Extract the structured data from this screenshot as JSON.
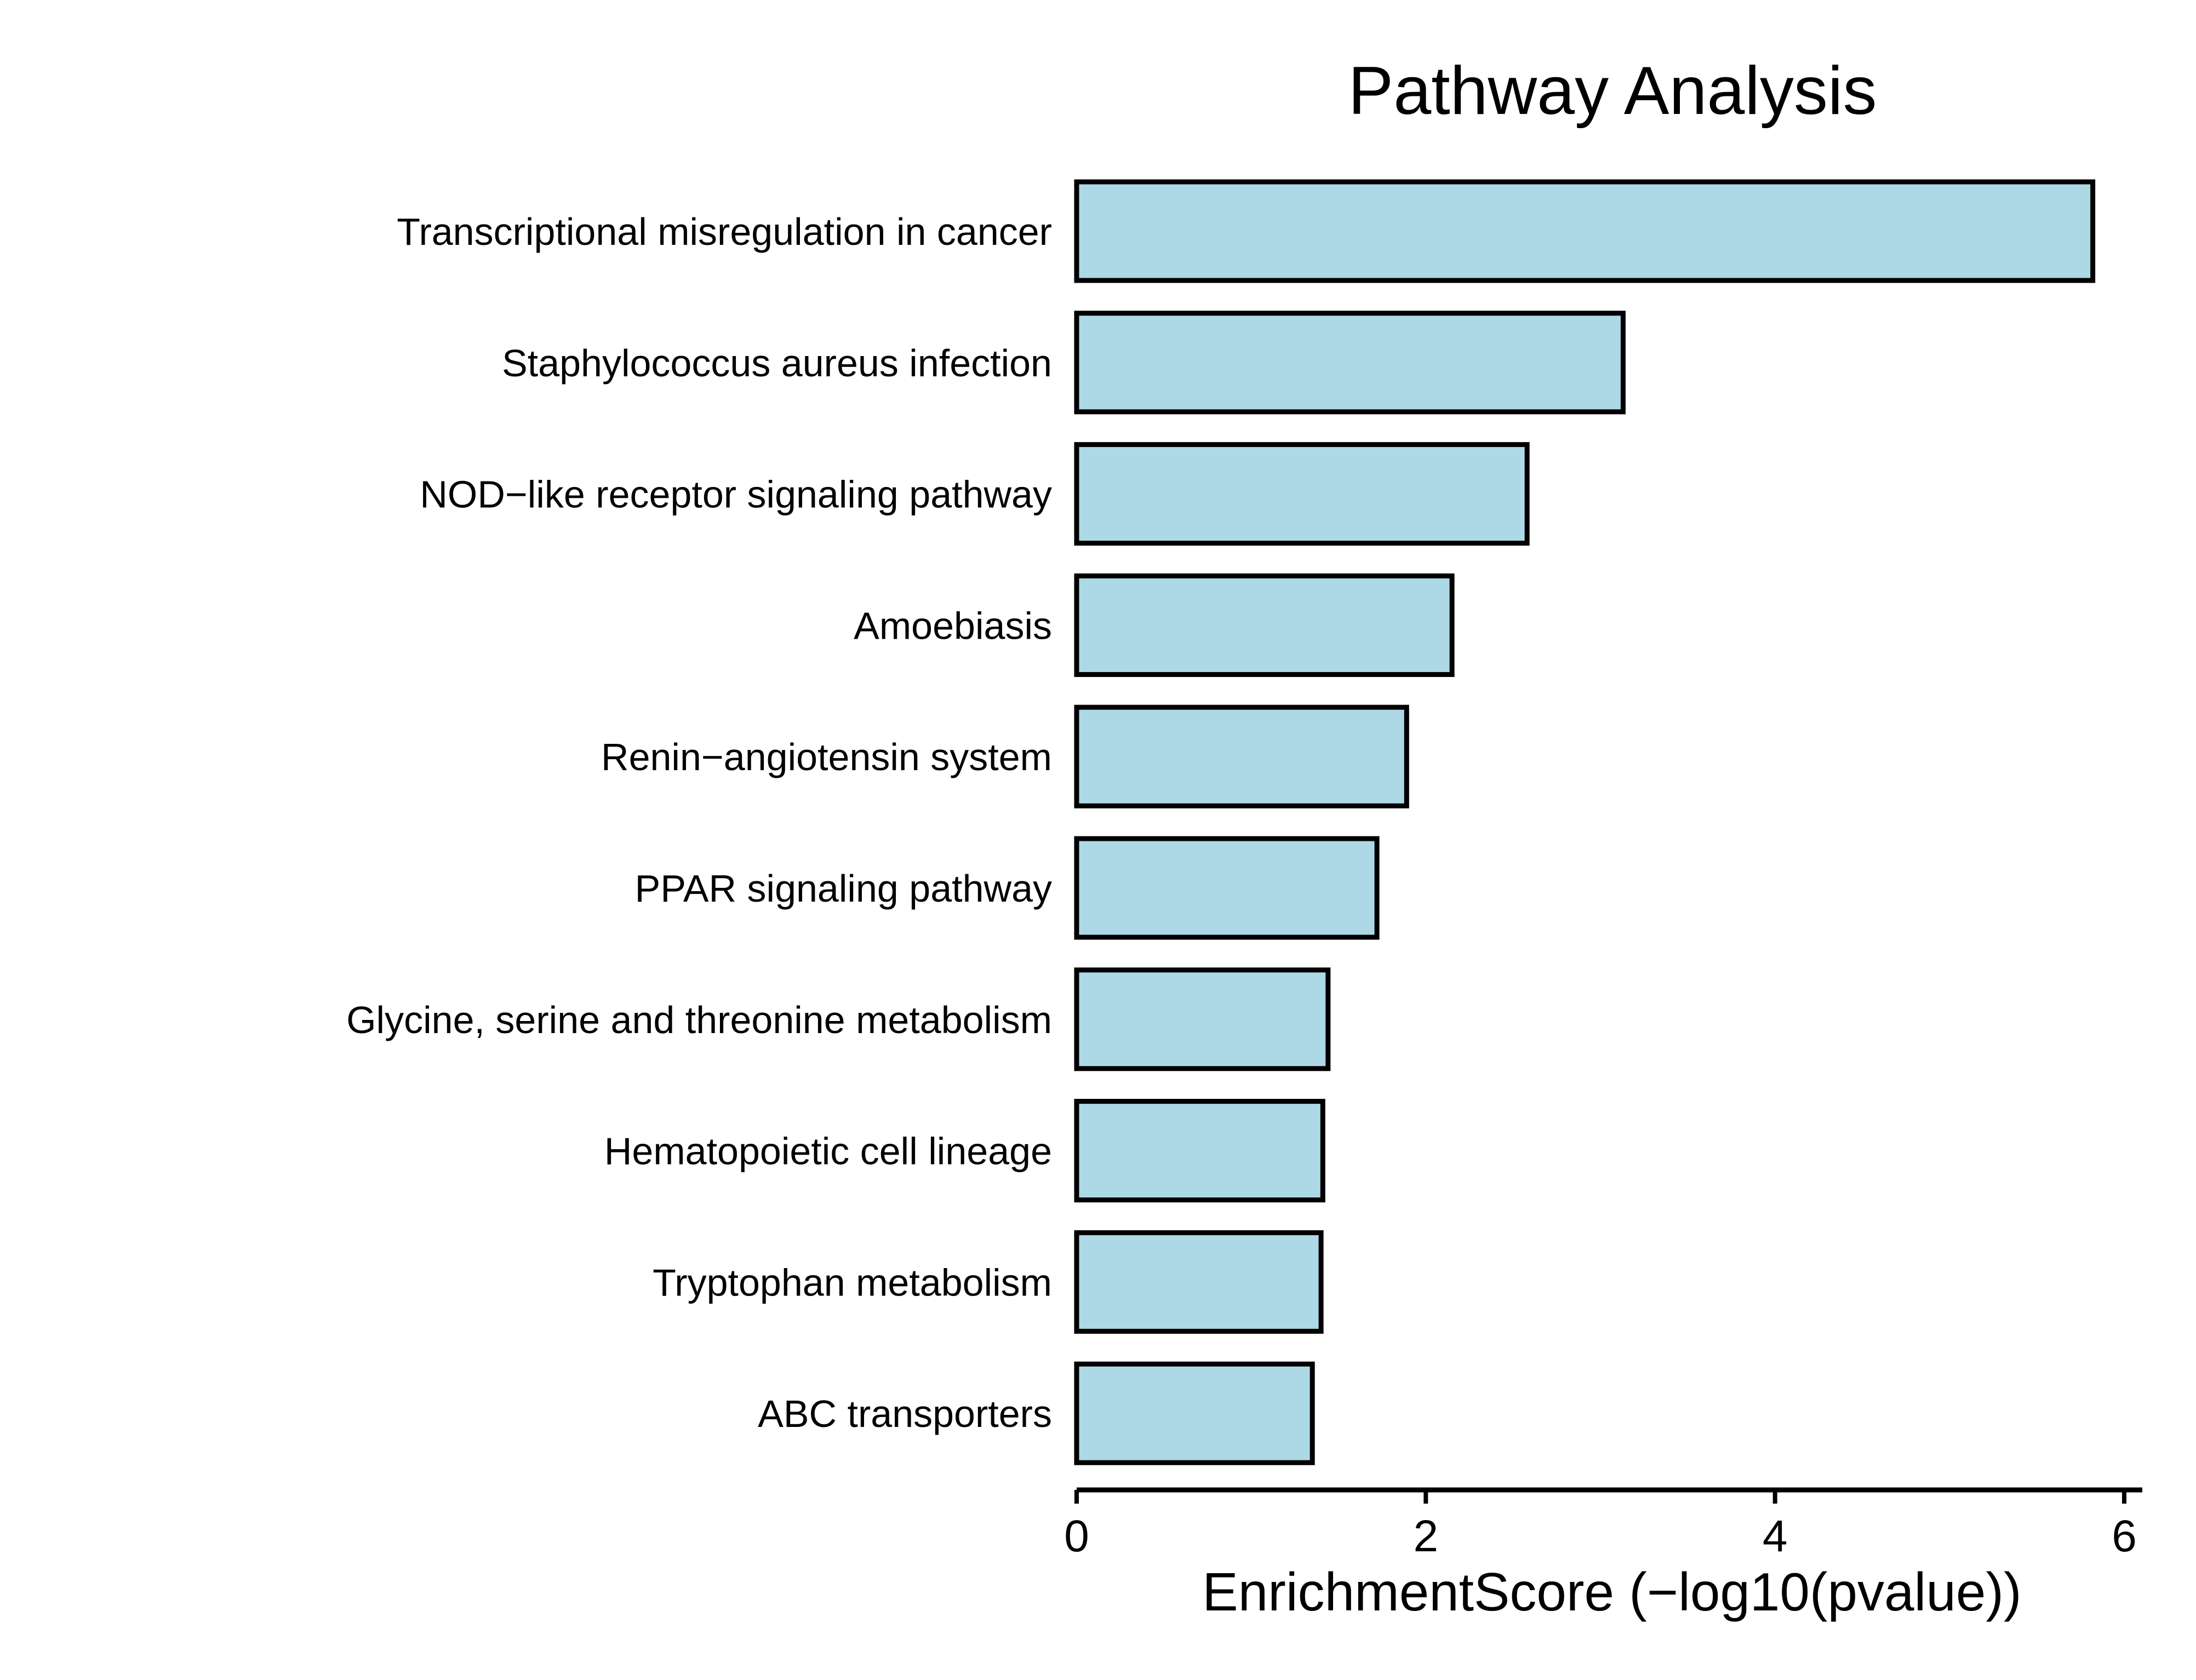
{
  "chart_data": {
    "type": "bar",
    "orientation": "horizontal",
    "title": "Pathway Analysis",
    "xlabel": "EnrichmentScore (−log10(pvalue))",
    "ylabel": "",
    "xlim": [
      0,
      6
    ],
    "xticks": [
      0,
      2,
      4,
      6
    ],
    "grid": false,
    "bar_color": "#add8e6",
    "bar_edge_color": "#000000",
    "categories": [
      "Transcriptional misregulation in cancer",
      "Staphylococcus aureus infection",
      "NOD−like receptor signaling pathway",
      "Amoebiasis",
      "Renin−angiotensin system",
      "PPAR signaling pathway",
      "Glycine, serine and threonine metabolism",
      "Hematopoietic cell lineage",
      "Tryptophan metabolism",
      "ABC transporters"
    ],
    "values": [
      5.82,
      3.13,
      2.58,
      2.15,
      1.89,
      1.72,
      1.44,
      1.41,
      1.4,
      1.35
    ]
  }
}
